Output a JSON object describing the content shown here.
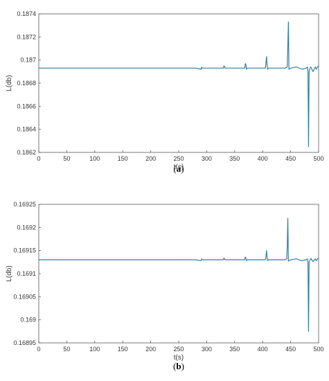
{
  "colors": {
    "line": "#2f7ea0",
    "axis": "#555555",
    "background": "#ffffff"
  },
  "chart_data": [
    {
      "type": "line",
      "caption": "a",
      "xlabel": "t(s)",
      "ylabel": "L(db)",
      "xlim": [
        0,
        500
      ],
      "ylim": [
        0.1862,
        0.1874
      ],
      "xticks": [
        "0",
        "50",
        "100",
        "150",
        "200",
        "250",
        "300",
        "350",
        "400",
        "450",
        "500"
      ],
      "yticks": [
        "0.1862",
        "0.1864",
        "0.1866",
        "0.1868",
        "0.187",
        "0.1872",
        "0.1874"
      ],
      "grid": false,
      "series": [
        {
          "x": [
            0,
            100,
            200,
            280,
            290,
            291,
            292,
            300,
            330,
            331,
            332,
            333,
            340,
            368,
            369,
            370,
            371,
            372,
            380,
            405,
            406,
            407,
            408,
            409,
            410,
            420,
            430,
            440,
            444,
            445,
            446,
            447,
            450,
            460,
            470,
            478,
            480,
            481,
            482,
            483,
            484,
            486,
            490,
            494,
            496,
            498,
            500
          ],
          "y": [
            0.18693,
            0.18693,
            0.18693,
            0.18693,
            0.18692,
            0.18694,
            0.18693,
            0.18693,
            0.18693,
            0.18695,
            0.18694,
            0.18693,
            0.18693,
            0.18693,
            0.18697,
            0.18696,
            0.18692,
            0.18693,
            0.18693,
            0.18693,
            0.18698,
            0.18703,
            0.18695,
            0.18692,
            0.18693,
            0.18693,
            0.18693,
            0.18693,
            0.18694,
            0.18712,
            0.18733,
            0.18692,
            0.18693,
            0.18694,
            0.18692,
            0.18693,
            0.18694,
            0.1869,
            0.18625,
            0.1869,
            0.18692,
            0.18694,
            0.1869,
            0.18694,
            0.18692,
            0.18694,
            0.18695
          ]
        }
      ]
    },
    {
      "type": "line",
      "caption": "b",
      "xlabel": "t(s)",
      "ylabel": "L(db)",
      "xlim": [
        0,
        500
      ],
      "ylim": [
        0.16895,
        0.16925
      ],
      "xticks": [
        "0",
        "50",
        "100",
        "150",
        "200",
        "250",
        "300",
        "350",
        "400",
        "450",
        "500"
      ],
      "yticks": [
        "0.16895",
        "0.169",
        "0.16905",
        "0.1691",
        "0.16915",
        "0.1692",
        "0.16925"
      ],
      "grid": false,
      "series": [
        {
          "x": [
            0,
            100,
            200,
            280,
            290,
            291,
            292,
            300,
            330,
            331,
            332,
            333,
            340,
            368,
            369,
            370,
            371,
            372,
            380,
            405,
            406,
            407,
            408,
            409,
            410,
            420,
            430,
            440,
            443,
            444,
            445,
            446,
            450,
            460,
            470,
            478,
            480,
            481,
            482,
            483,
            484,
            486,
            490,
            494,
            496,
            498,
            500
          ],
          "y": [
            0.16913,
            0.16913,
            0.16913,
            0.16913,
            0.169128,
            0.169132,
            0.16913,
            0.16913,
            0.16913,
            0.169134,
            0.169131,
            0.16913,
            0.16913,
            0.16913,
            0.169136,
            0.169134,
            0.169128,
            0.16913,
            0.16913,
            0.16913,
            0.169138,
            0.16915,
            0.169134,
            0.169128,
            0.16913,
            0.16913,
            0.16913,
            0.16913,
            0.169132,
            0.16916,
            0.16922,
            0.169127,
            0.16913,
            0.169132,
            0.169128,
            0.16913,
            0.169132,
            0.169124,
            0.168975,
            0.169125,
            0.169128,
            0.169133,
            0.169126,
            0.169132,
            0.169128,
            0.169132,
            0.169133
          ]
        }
      ]
    }
  ]
}
